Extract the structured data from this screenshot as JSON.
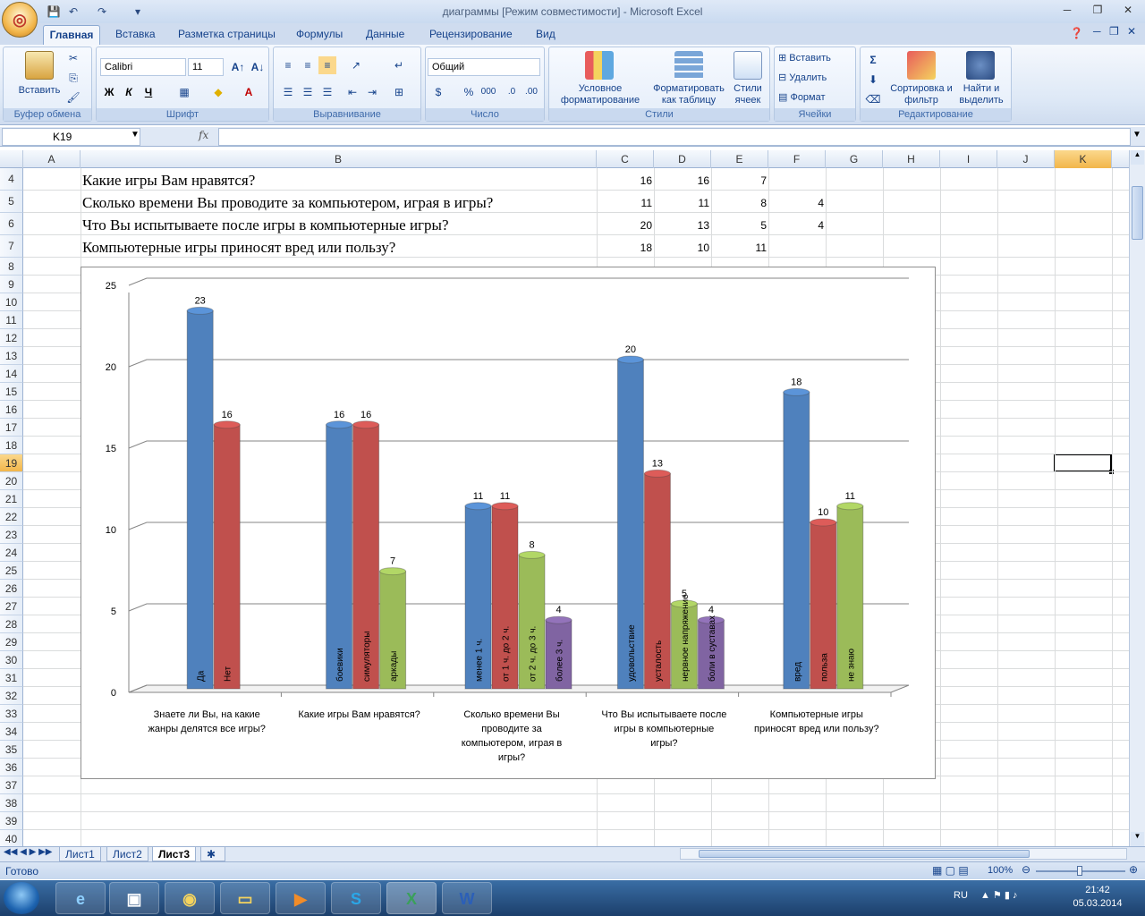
{
  "window": {
    "title": "диаграммы  [Режим совместимости] - Microsoft Excel",
    "office_button_glyph": "◎"
  },
  "tabs": [
    "Главная",
    "Вставка",
    "Разметка страницы",
    "Формулы",
    "Данные",
    "Рецензирование",
    "Вид"
  ],
  "ribbon": {
    "clipboard": {
      "paste": "Вставить",
      "label": "Буфер обмена"
    },
    "font": {
      "name": "Calibri",
      "size": "11",
      "label": "Шрифт",
      "bold": "Ж",
      "italic": "К",
      "underline": "Ч"
    },
    "alignment": {
      "label": "Выравнивание"
    },
    "number": {
      "format": "Общий",
      "label": "Число",
      "percent": "%",
      "thousands": "000"
    },
    "styles": {
      "conditional": "Условное форматирование",
      "as_table": "Форматировать как таблицу",
      "cell_styles": "Стили ячеек",
      "label": "Стили"
    },
    "cells": {
      "insert": "Вставить",
      "delete": "Удалить",
      "format": "Формат",
      "label": "Ячейки"
    },
    "editing": {
      "sort": "Сортировка и фильтр",
      "find": "Найти и выделить",
      "label": "Редактирование",
      "sigma": "Σ"
    }
  },
  "formula_bar": {
    "name_box": "K19",
    "fx": "fx",
    "value": ""
  },
  "columns": [
    "A",
    "B",
    "C",
    "D",
    "E",
    "F",
    "G",
    "H",
    "I",
    "J",
    "K"
  ],
  "rows": [
    "4",
    "5",
    "6",
    "7",
    "8",
    "9",
    "10",
    "11",
    "12",
    "13",
    "14",
    "15",
    "16",
    "17",
    "18",
    "19",
    "20",
    "21",
    "22",
    "23",
    "24",
    "25",
    "26",
    "27",
    "28",
    "29",
    "30",
    "31",
    "32",
    "33",
    "34",
    "35",
    "36",
    "37",
    "38",
    "39",
    "40"
  ],
  "selected": {
    "column": "K",
    "row": "19"
  },
  "table_rows": [
    {
      "question": "Какие игры Вам нравятся?",
      "c": "16",
      "d": "16",
      "e": "7",
      "f": ""
    },
    {
      "question": "Сколько времени Вы проводите за компьютером, играя в игры?",
      "c": "11",
      "d": "11",
      "e": "8",
      "f": "4"
    },
    {
      "question": "Что Вы испытываете после игры в компьютерные игры?",
      "c": "20",
      "d": "13",
      "e": "5",
      "f": "4"
    },
    {
      "question": "Компьютерные игры приносят вред или пользу?",
      "c": "18",
      "d": "10",
      "e": "11",
      "f": ""
    }
  ],
  "chart_data": {
    "type": "bar",
    "ylim": [
      0,
      25
    ],
    "yticks": [
      0,
      5,
      10,
      15,
      20,
      25
    ],
    "grid": true,
    "colors": {
      "blue": "#4f81bd",
      "red": "#c0504d",
      "green": "#9bbb59",
      "purple": "#8064a2"
    },
    "groups": [
      {
        "label": [
          "Знаете ли Вы, на какие",
          "жанры делятся все игры?"
        ],
        "bars": [
          {
            "name": "Да",
            "value": 23,
            "color": "blue"
          },
          {
            "name": "Нет",
            "value": 16,
            "color": "red"
          }
        ]
      },
      {
        "label": [
          "Какие игры Вам нравятся?"
        ],
        "bars": [
          {
            "name": "боевики",
            "value": 16,
            "color": "blue"
          },
          {
            "name": "симуляторы",
            "value": 16,
            "color": "red"
          },
          {
            "name": "аркады",
            "value": 7,
            "color": "green"
          }
        ]
      },
      {
        "label": [
          "Сколько времени Вы",
          "проводите за",
          "компьютером, играя в",
          "игры?"
        ],
        "bars": [
          {
            "name": "менее 1 ч.",
            "value": 11,
            "color": "blue"
          },
          {
            "name": "от 1 ч. до 2 ч.",
            "value": 11,
            "color": "red"
          },
          {
            "name": "от 2 ч. до 3 ч.",
            "value": 8,
            "color": "green"
          },
          {
            "name": "более 3 ч.",
            "value": 4,
            "color": "purple"
          }
        ]
      },
      {
        "label": [
          "Что Вы испытываете после",
          "игры в компьютерные",
          "игры?"
        ],
        "bars": [
          {
            "name": "удовольствие",
            "value": 20,
            "color": "blue"
          },
          {
            "name": "усталость",
            "value": 13,
            "color": "red"
          },
          {
            "name": "нервное напряжение",
            "value": 5,
            "color": "green"
          },
          {
            "name": "боли в суставах",
            "value": 4,
            "color": "purple"
          }
        ]
      },
      {
        "label": [
          "Компьютерные игры",
          "приносят вред или пользу?"
        ],
        "bars": [
          {
            "name": "вред",
            "value": 18,
            "color": "blue"
          },
          {
            "name": "польза",
            "value": 10,
            "color": "red"
          },
          {
            "name": "не знаю",
            "value": 11,
            "color": "green"
          }
        ]
      }
    ]
  },
  "sheets": [
    "Лист1",
    "Лист2",
    "Лист3"
  ],
  "active_sheet": "Лист3",
  "status": {
    "ready": "Готово",
    "zoom": "100%"
  },
  "taskbar": {
    "lang": "RU",
    "time": "21:42",
    "date": "05.03.2014"
  }
}
